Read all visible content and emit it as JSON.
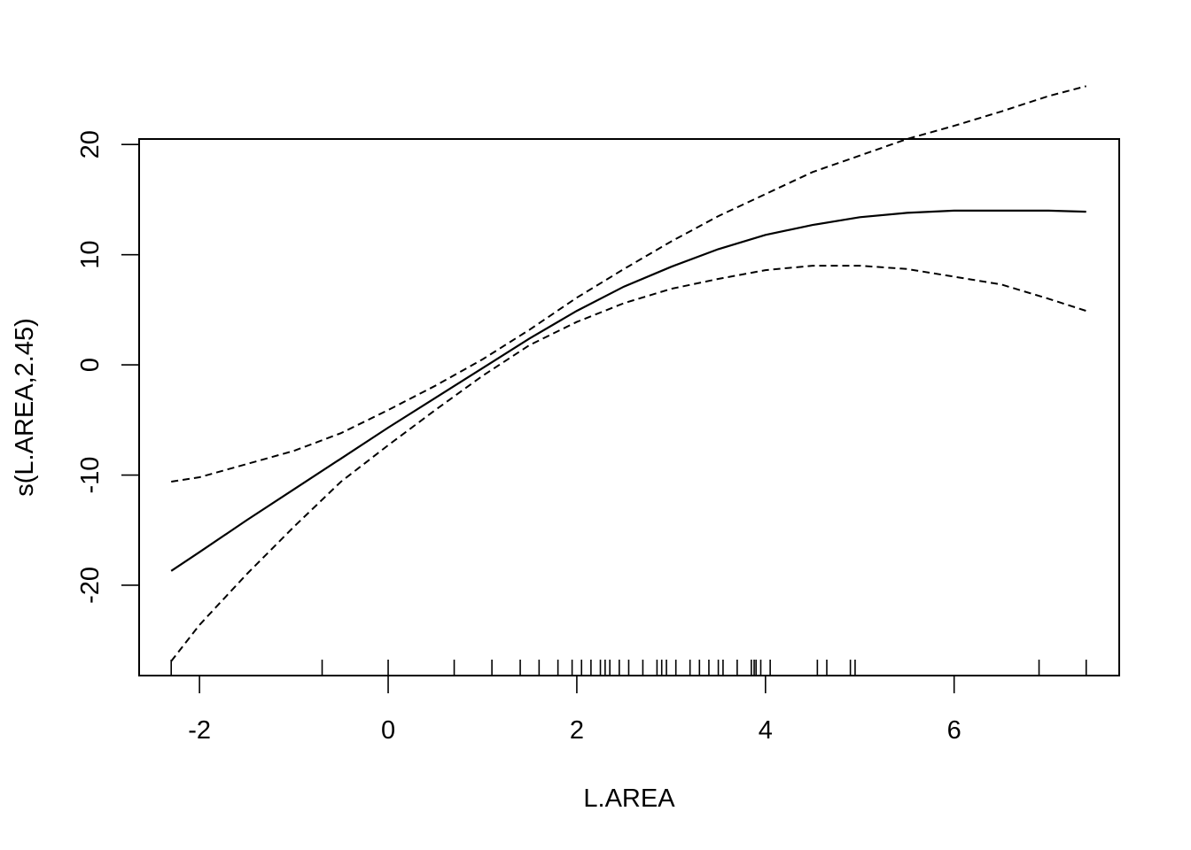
{
  "chart_data": {
    "type": "line",
    "title": "",
    "xlabel": "L.AREA",
    "ylabel": "s(L.AREA,2.45)",
    "xlim": [
      -2.64,
      7.75
    ],
    "ylim": [
      -28.2,
      20.5
    ],
    "xticks": [
      -2,
      0,
      2,
      4,
      6
    ],
    "xtick_labels": [
      "-2",
      "0",
      "2",
      "4",
      "6"
    ],
    "yticks": [
      -20,
      -10,
      0,
      10,
      20
    ],
    "ytick_labels": [
      "-20",
      "-10",
      "0",
      "10",
      "20"
    ],
    "grid": false,
    "legend": "none",
    "x": [
      -2.3,
      -2.0,
      -1.5,
      -1.0,
      -0.5,
      0.0,
      0.5,
      1.0,
      1.5,
      2.0,
      2.5,
      3.0,
      3.5,
      4.0,
      4.5,
      5.0,
      5.5,
      6.0,
      6.5,
      7.0,
      7.4
    ],
    "series": [
      {
        "style": "solid",
        "values": [
          -18.7,
          -17.0,
          -14.1,
          -11.3,
          -8.5,
          -5.7,
          -3.0,
          -0.3,
          2.4,
          4.9,
          7.1,
          8.9,
          10.5,
          11.8,
          12.7,
          13.4,
          13.8,
          14.0,
          14.0,
          14.0,
          13.9
        ]
      },
      {
        "style": "dashed",
        "values": [
          -10.6,
          -10.2,
          -9.0,
          -7.8,
          -6.2,
          -4.1,
          -1.9,
          0.5,
          3.2,
          6.1,
          8.7,
          11.2,
          13.5,
          15.5,
          17.5,
          19.0,
          20.5,
          21.7,
          23.0,
          24.4,
          25.3
        ]
      },
      {
        "style": "dashed",
        "values": [
          -26.9,
          -23.6,
          -19.0,
          -14.7,
          -10.6,
          -7.3,
          -4.1,
          -1.0,
          1.8,
          3.9,
          5.6,
          6.9,
          7.8,
          8.6,
          9.0,
          9.0,
          8.7,
          8.0,
          7.3,
          6.0,
          4.9
        ]
      }
    ],
    "rug": [
      -2.3,
      -0.7,
      0.0,
      0.7,
      1.1,
      1.4,
      1.6,
      1.8,
      1.95,
      2.05,
      2.15,
      2.25,
      2.3,
      2.35,
      2.45,
      2.55,
      2.7,
      2.85,
      2.9,
      2.95,
      3.05,
      3.2,
      3.3,
      3.4,
      3.5,
      3.55,
      3.7,
      3.85,
      3.88,
      3.9,
      3.95,
      4.05,
      4.55,
      4.65,
      4.9,
      4.95,
      6.9,
      7.4
    ]
  }
}
